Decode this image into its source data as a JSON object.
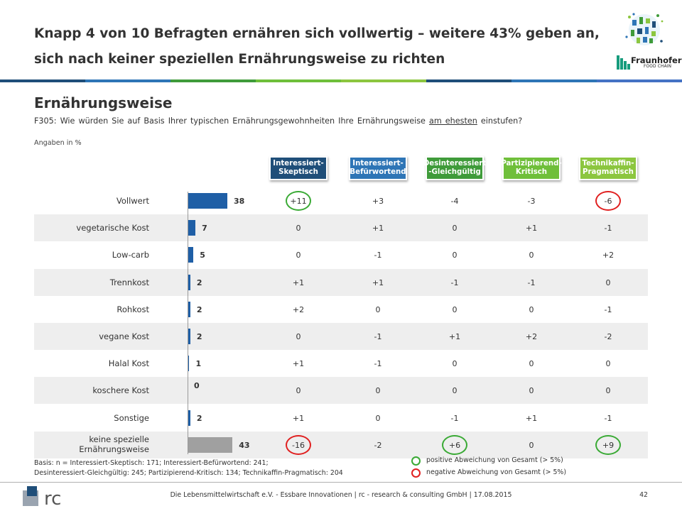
{
  "header": {
    "title_line1": "Knapp 4 von 10 Befragten ernähren sich vollwertig – weitere 43% geben an,",
    "title_line2": "sich nach keiner speziellen Ernährungsweise zu richten",
    "logo_word": "Fraunhofer",
    "logo_sub": "FOOD CHAIN"
  },
  "section": {
    "title": "Ernährungsweise",
    "question_pre": "F305: Wie würden Sie auf Basis Ihrer typischen Ernährungsgewohnheiten  Ihre Ernährungsweise ",
    "question_underlined": "am ehesten",
    "question_post": " einstufen?",
    "unit": "Angaben in %"
  },
  "segments": [
    {
      "label": "Interessiert-\nSkeptisch",
      "color": "#1f4e79"
    },
    {
      "label": "Interessiert-\nBefürwortend",
      "color": "#2e75b6"
    },
    {
      "label": "Desinteressiert\n-Gleichgültig",
      "color": "#3f9b3a"
    },
    {
      "label": "Partizipierend-\nKritisch",
      "color": "#6fbf3a"
    },
    {
      "label": "Technikaffin-\nPragmatisch",
      "color": "#8cc63f"
    }
  ],
  "chart_data": {
    "type": "bar",
    "orientation": "horizontal",
    "categories": [
      "Vollwert",
      "vegetarische Kost",
      "Low-carb",
      "Trennkost",
      "Rohkost",
      "vegane Kost",
      "Halal Kost",
      "koschere Kost",
      "Sonstige",
      "keine spezielle Ernährungsweise"
    ],
    "values": [
      38,
      7,
      5,
      2,
      2,
      2,
      1,
      0,
      2,
      43
    ],
    "value_labels": [
      "38",
      "7",
      "5",
      "2",
      "2",
      "2",
      "1",
      "0",
      "2",
      "43"
    ],
    "bar_colors": [
      "#1f5fa6",
      "#1f5fa6",
      "#1f5fa6",
      "#1f5fa6",
      "#1f5fa6",
      "#1f5fa6",
      "#1f5fa6",
      "#1f5fa6",
      "#1f5fa6",
      "#a0a0a0"
    ],
    "xlim": [
      0,
      60
    ],
    "deviations": [
      [
        "+11",
        "+3",
        "-4",
        "-3",
        "-6"
      ],
      [
        "0",
        "+1",
        "0",
        "+1",
        "-1"
      ],
      [
        "0",
        "-1",
        "0",
        "0",
        "+2"
      ],
      [
        "+1",
        "+1",
        "-1",
        "-1",
        "0"
      ],
      [
        "+2",
        "0",
        "0",
        "0",
        "-1"
      ],
      [
        "0",
        "-1",
        "+1",
        "+2",
        "-2"
      ],
      [
        "+1",
        "-1",
        "0",
        "0",
        "0"
      ],
      [
        "0",
        "0",
        "0",
        "0",
        "0"
      ],
      [
        "+1",
        "0",
        "-1",
        "+1",
        "-1"
      ],
      [
        "-16",
        "-2",
        "+6",
        "0",
        "+9"
      ]
    ],
    "highlights": [
      {
        "row": 0,
        "col": 0,
        "type": "positive"
      },
      {
        "row": 0,
        "col": 4,
        "type": "negative"
      },
      {
        "row": 9,
        "col": 0,
        "type": "negative"
      },
      {
        "row": 9,
        "col": 2,
        "type": "positive"
      },
      {
        "row": 9,
        "col": 4,
        "type": "positive"
      }
    ]
  },
  "colors": {
    "positive": "#3aaa35",
    "negative": "#e02020",
    "bar": "#1f5fa6",
    "bar_none": "#a0a0a0",
    "header_strip": [
      "#1f4e79",
      "#2e75b6",
      "#3f9b3a",
      "#6fbf3a",
      "#8cc63f",
      "#1f4e79",
      "#2e75b6",
      "#4472c4"
    ]
  },
  "basis": {
    "line1": "Basis: n = Interessiert-Skeptisch: 171; Interessiert-Befürwortend: 241;",
    "line2": "Desinteressiert-Gleichgültig: 245; Partizipierend-Kritisch: 134; Technikaffin-Pragmatisch: 204"
  },
  "legend": {
    "positive": "positive Abweichung von Gesamt (> 5%)",
    "negative": "negative Abweichung von Gesamt (> 5%)"
  },
  "footer": {
    "text": "Die Lebensmittelwirtschaft e.V. - Essbare Innovationen | rc - research & consulting GmbH | 17.08.2015",
    "page": "42"
  }
}
